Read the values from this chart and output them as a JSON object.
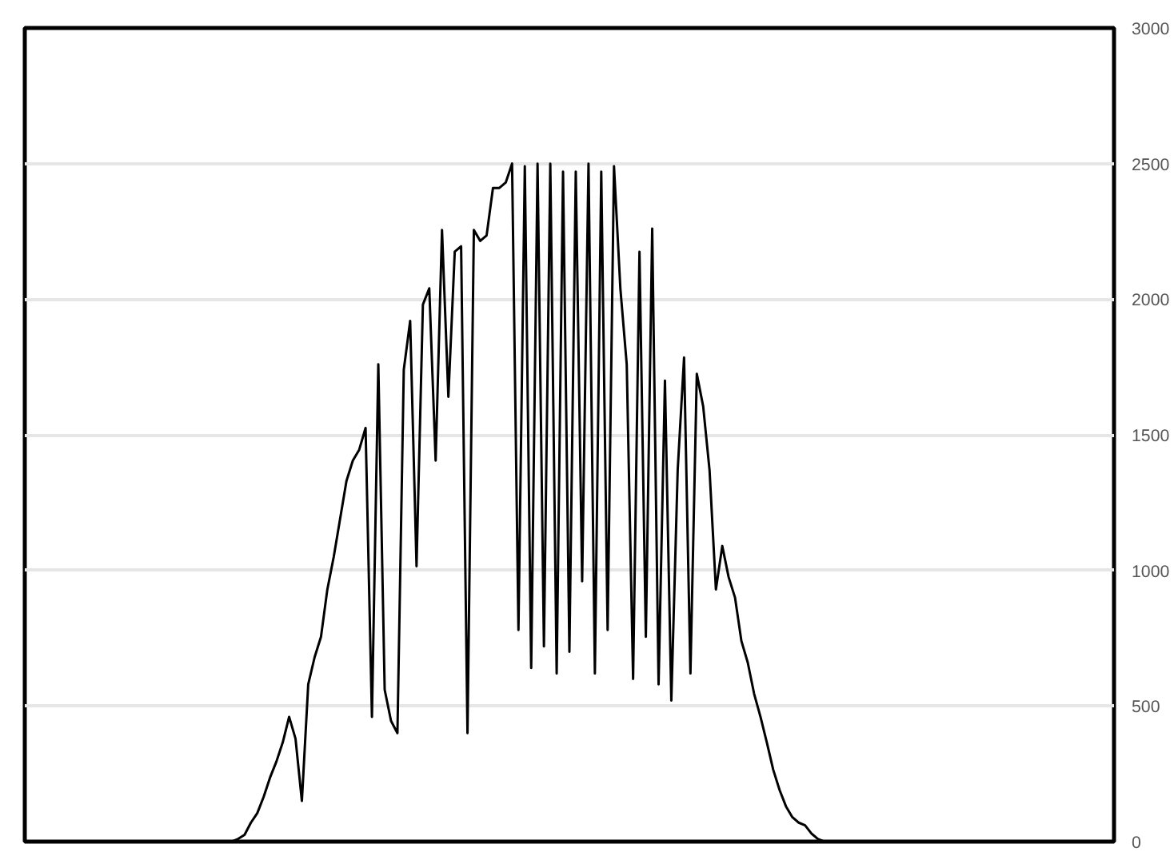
{
  "chart_data": {
    "type": "line",
    "categories": [
      null,
      null,
      null,
      null,
      null,
      null,
      null,
      null,
      null,
      null,
      null,
      null,
      null,
      null,
      null,
      null,
      null,
      null,
      null,
      null,
      null,
      null,
      null,
      null,
      null,
      null,
      null,
      null,
      null,
      null,
      null,
      null,
      null,
      null,
      null,
      null,
      null,
      null,
      null,
      null,
      null,
      null,
      null,
      null,
      null,
      null,
      null,
      null,
      null,
      null,
      null,
      null,
      null,
      null,
      null,
      null,
      null,
      null,
      null,
      null,
      null,
      null,
      null,
      null,
      null,
      null,
      null,
      null,
      null,
      null,
      null,
      null,
      null,
      null,
      null,
      null,
      null,
      null,
      null,
      null,
      null,
      null,
      null,
      null,
      null,
      null,
      null,
      null,
      null,
      null,
      null,
      null,
      null,
      null,
      null,
      null,
      null,
      null,
      null,
      null,
      null,
      null,
      null,
      null,
      null,
      null,
      null,
      null,
      null,
      null,
      null,
      null,
      null,
      null,
      null,
      null,
      null,
      null,
      null,
      null,
      null,
      null,
      null,
      null,
      null,
      null,
      null,
      null,
      null,
      null,
      null,
      null,
      null,
      null,
      null,
      null,
      null,
      null,
      null,
      null,
      null,
      null,
      null,
      null,
      null,
      null,
      null,
      null,
      null,
      null,
      null,
      null,
      null,
      null,
      null,
      null,
      null,
      null,
      null,
      null,
      null,
      null,
      null,
      null,
      null,
      null,
      null,
      null,
      null,
      null,
      null
    ],
    "series": [
      {
        "color": "#000000",
        "values": [
          0,
          0,
          0,
          0,
          0,
          0,
          0,
          0,
          0,
          0,
          0,
          0,
          0,
          0,
          0,
          0,
          0,
          0,
          0,
          0,
          0,
          0,
          0,
          0,
          0,
          0,
          0,
          0,
          0,
          0,
          0,
          0,
          0,
          10,
          25,
          70,
          105,
          165,
          236,
          295,
          366,
          460,
          380,
          150,
          580,
          680,
          755,
          930,
          1050,
          1190,
          1330,
          1405,
          1445,
          1525,
          460,
          1760,
          560,
          445,
          400,
          1740,
          1920,
          1015,
          1980,
          2040,
          1405,
          2255,
          1640,
          2175,
          2195,
          400,
          2255,
          2215,
          2235,
          2410,
          2410,
          2430,
          2500,
          780,
          2490,
          640,
          2500,
          720,
          2500,
          620,
          2470,
          700,
          2470,
          960,
          2500,
          620,
          2470,
          780,
          2490,
          2040,
          1760,
          600,
          2175,
          755,
          2260,
          580,
          1700,
          520,
          1370,
          1785,
          620,
          1725,
          1605,
          1370,
          930,
          1090,
          975,
          900,
          740,
          660,
          545,
          460,
          365,
          265,
          190,
          130,
          90,
          70,
          60,
          30,
          10,
          0,
          0,
          0,
          0,
          0,
          0,
          0,
          0,
          0,
          0,
          0,
          0,
          0,
          0,
          0,
          0,
          0,
          0,
          0,
          0,
          0,
          0,
          0,
          0,
          0,
          0,
          0,
          0,
          0,
          0,
          0,
          0,
          0,
          0,
          0,
          0,
          0,
          0,
          0,
          0,
          0,
          0,
          0,
          0,
          0,
          0
        ]
      }
    ],
    "ylim": [
      0,
      3000
    ],
    "yticks": [
      0,
      500,
      1000,
      1500,
      2000,
      2500,
      3000
    ],
    "grid": "y",
    "tick_labels": "y",
    "marker": "none",
    "line_style": "solid"
  }
}
